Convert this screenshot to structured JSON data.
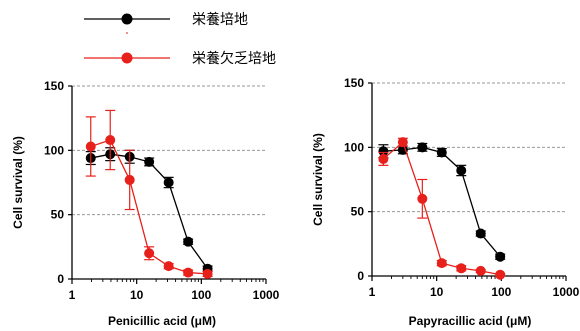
{
  "legend": [
    {
      "label": "栄養培地",
      "color": "#000000"
    },
    {
      "label": "栄養欠乏培地",
      "color": "#e8201b"
    }
  ],
  "colors": {
    "normal": "#000000",
    "deficient": "#e8201b",
    "gridline": "#9a9a9a"
  },
  "chart_data": [
    {
      "type": "line",
      "xlabel": "Penicillic acid (μM)",
      "ylabel": "Cell survival (%)",
      "x_scale": "log",
      "xlim": [
        1,
        1000
      ],
      "ylim": [
        0,
        150
      ],
      "x_ticks": [
        1,
        10,
        100,
        1000
      ],
      "x_tick_labels": [
        "1",
        "10",
        "100",
        "1000"
      ],
      "y_ticks": [
        0,
        50,
        100,
        150
      ],
      "y_tick_labels": [
        "0",
        "50",
        "100",
        "150"
      ],
      "grid": {
        "y": [
          50,
          100,
          150
        ],
        "style": "dashed"
      },
      "series": [
        {
          "name": "栄養培地",
          "color": "#000000",
          "x": [
            1.95,
            3.9,
            7.8,
            15.6,
            31.25,
            62.5,
            125
          ],
          "y": [
            94,
            97,
            95,
            91,
            75,
            29,
            8
          ],
          "err": [
            5,
            5,
            5,
            3,
            4,
            2,
            2
          ]
        },
        {
          "name": "栄養欠乏培地",
          "color": "#e8201b",
          "x": [
            1.95,
            3.9,
            7.8,
            15.6,
            31.25,
            62.5,
            125
          ],
          "y": [
            103,
            108,
            77,
            20,
            10,
            5,
            4
          ],
          "err": [
            23,
            23,
            23,
            5,
            2,
            2,
            2
          ]
        }
      ]
    },
    {
      "type": "line",
      "xlabel": "Papyracillic acid (μM)",
      "ylabel": "Cell survival (%)",
      "x_scale": "log",
      "xlim": [
        1,
        1000
      ],
      "ylim": [
        0,
        150
      ],
      "x_ticks": [
        1,
        10,
        100,
        1000
      ],
      "x_tick_labels": [
        "1",
        "10",
        "100",
        "1000"
      ],
      "y_ticks": [
        0,
        50,
        100,
        150
      ],
      "y_tick_labels": [
        "0",
        "50",
        "100",
        "150"
      ],
      "grid": {
        "y": [
          50,
          100,
          150
        ],
        "style": "dashed"
      },
      "series": [
        {
          "name": "栄養培地",
          "color": "#000000",
          "x": [
            1.5,
            3,
            6,
            12,
            24,
            48,
            96
          ],
          "y": [
            97,
            98,
            100,
            96,
            82,
            33,
            15
          ],
          "err": [
            5,
            3,
            3,
            3,
            4,
            2,
            2
          ]
        },
        {
          "name": "栄養欠乏培地",
          "color": "#e8201b",
          "x": [
            1.5,
            3,
            6,
            12,
            24,
            48,
            96
          ],
          "y": [
            91,
            104,
            60,
            10,
            6,
            4,
            1
          ],
          "err": [
            5,
            3,
            15,
            2,
            2,
            1,
            1
          ]
        }
      ]
    }
  ]
}
